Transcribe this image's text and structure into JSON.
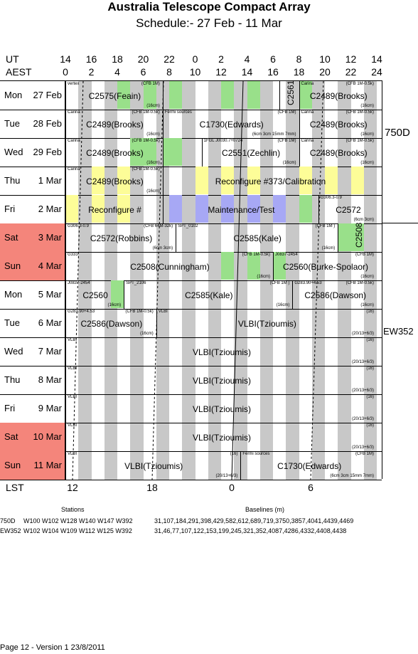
{
  "header": {
    "title": "Australia Telescope Compact Array",
    "subtitle": "Schedule:- 27 Feb - 11 Mar"
  },
  "axes": {
    "ut_label": "UT",
    "aest_label": "AEST",
    "lst_label": "LST",
    "ut_ticks": [
      "14",
      "16",
      "18",
      "20",
      "22",
      "0",
      "2",
      "4",
      "6",
      "8",
      "10",
      "12",
      "14"
    ],
    "aest_ticks": [
      "0",
      "2",
      "4",
      "6",
      "8",
      "10",
      "12",
      "14",
      "16",
      "18",
      "20",
      "22",
      "24"
    ],
    "lst_ticks": [
      "12",
      "18",
      "0",
      "6"
    ]
  },
  "days": [
    {
      "day": "Mon",
      "date": "27 Feb",
      "weekend": false
    },
    {
      "day": "Tue",
      "date": "28 Feb",
      "weekend": false
    },
    {
      "day": "Wed",
      "date": "29 Feb",
      "weekend": false
    },
    {
      "day": "Thu",
      "date": "1 Mar",
      "weekend": false
    },
    {
      "day": "Fri",
      "date": "2 Mar",
      "weekend": false
    },
    {
      "day": "Sat",
      "date": "3 Mar",
      "weekend": true
    },
    {
      "day": "Sun",
      "date": "4 Mar",
      "weekend": true
    },
    {
      "day": "Mon",
      "date": "5 Mar",
      "weekend": false
    },
    {
      "day": "Tue",
      "date": "6 Mar",
      "weekend": false
    },
    {
      "day": "Wed",
      "date": "7 Mar",
      "weekend": false
    },
    {
      "day": "Thu",
      "date": "8 Mar",
      "weekend": false
    },
    {
      "day": "Fri",
      "date": "9 Mar",
      "weekend": false
    },
    {
      "day": "Sat",
      "date": "10 Mar",
      "weekend": true
    },
    {
      "day": "Sun",
      "date": "11 Mar",
      "weekend": true
    }
  ],
  "colors": {
    "weekend": "#f4857b",
    "band_grey": "#c8c8c8",
    "band_green": "#99e08a",
    "band_yellow": "#fdfd98",
    "band_blue": "#a7a8f5"
  },
  "blocks": [
    {
      "row": 0,
      "start": 0.0,
      "end": 7.5,
      "title": "C2575(Feain)",
      "src": "vertex",
      "rc": "(CFB 1M)",
      "cm": "(16cm)"
    },
    {
      "row": 0,
      "start": 7.5,
      "end": 16.5,
      "title": "",
      "src": "",
      "rc": "",
      "cm": ""
    },
    {
      "row": 0,
      "start": 16.5,
      "end": 18.0,
      "title": "C2561",
      "src": "",
      "rc": "",
      "cm": "",
      "vertical": true
    },
    {
      "row": 0,
      "start": 18.0,
      "end": 24.0,
      "title": "C2489(Brooks)",
      "src": "Carina",
      "rc": "(CFB 1M-0.5k)",
      "cm": "(16cm)"
    },
    {
      "row": 1,
      "start": 0.0,
      "end": 7.5,
      "title": "C2489(Brooks)",
      "src": "Carina",
      "rc": "(CFB 1M-0.5k)",
      "cm": "(16cm)"
    },
    {
      "row": 1,
      "start": 7.5,
      "end": 18.0,
      "title": "C1730(Edwards)",
      "src": "Fermi sources",
      "rc": "(CFB 1M)",
      "cm": "(6cm 3cm 15mm 7mm)"
    },
    {
      "row": 1,
      "start": 18.0,
      "end": 24.0,
      "title": "C2489(Brooks)",
      "src": "Carina",
      "rc": "(CFB 1M-0.5k)",
      "cm": "(16cm)"
    },
    {
      "row": 2,
      "start": 0.0,
      "end": 7.5,
      "title": "C2489(Brooks)",
      "src": "Carina",
      "rc": "(CFB 1M-0.5k)",
      "cm": "(16cm)"
    },
    {
      "row": 2,
      "start": 7.5,
      "end": 10.5,
      "title": "",
      "src": "",
      "rc": "",
      "cm": ""
    },
    {
      "row": 2,
      "start": 10.5,
      "end": 18.0,
      "title": "C2551(Zechlin)",
      "src": "1FGL J0030.7+0724",
      "rc": "(CFB 1M)",
      "cm": "(16cm)"
    },
    {
      "row": 2,
      "start": 18.0,
      "end": 24.0,
      "title": "C2489(Brooks)",
      "src": "Carina",
      "rc": "(CFB 1M-0.5k)",
      "cm": "(16cm)"
    },
    {
      "row": 3,
      "start": 0.0,
      "end": 7.5,
      "title": "C2489(Brooks)",
      "src": "Carina",
      "rc": "(CFB 1M-0.5k)",
      "cm": "(16cm)"
    },
    {
      "row": 3,
      "start": 7.5,
      "end": 24.0,
      "title": "Reconfigure #373/Calibration",
      "src": "",
      "rc": "",
      "cm": ""
    },
    {
      "row": 4,
      "start": 0.0,
      "end": 7.5,
      "title": "Reconfigure #",
      "src": "",
      "rc": "",
      "cm": ""
    },
    {
      "row": 4,
      "start": 7.5,
      "end": 19.5,
      "title": "Maintenance/Test",
      "src": "",
      "rc": "",
      "cm": ""
    },
    {
      "row": 4,
      "start": 19.5,
      "end": 24.0,
      "title": "C2572",
      "src": "G306.3-0.9",
      "rc": "",
      "cm": "(6cm 3cm)"
    },
    {
      "row": 5,
      "start": 0.0,
      "end": 8.5,
      "title": "C2572(Robbins)",
      "src": "G306.3-0.9",
      "rc": "(CFB 64M-32k)",
      "cm": "(6cm 3cm)"
    },
    {
      "row": 5,
      "start": 8.5,
      "end": 21.0,
      "title": "C2585(Kale)",
      "src": "SPT_0102",
      "rc": "(CFB 1M )",
      "cm": "(16cm)"
    },
    {
      "row": 5,
      "start": 21.0,
      "end": 24.0,
      "title": "C2508",
      "src": "",
      "rc": "",
      "cm": "",
      "vertical": true
    },
    {
      "row": 6,
      "start": 0.0,
      "end": 16.0,
      "title": "C2508(Cunningham)",
      "src": "G333",
      "rc": "(CFB 1M-0.5k)",
      "cm": "(16cm)"
    },
    {
      "row": 6,
      "start": 16.0,
      "end": 24.0,
      "title": "C2560(Burke-Spolaor)",
      "src": "J0837-2454",
      "rc": "(CFB 1M)",
      "cm": "(16cm)"
    },
    {
      "row": 7,
      "start": 0.0,
      "end": 4.5,
      "title": "C2560",
      "src": "J0837-2454",
      "rc": "",
      "cm": "(16cm)"
    },
    {
      "row": 7,
      "start": 4.5,
      "end": 17.5,
      "title": "C2585(Kale)",
      "src": "SPT_2106",
      "rc": "(CFB 1M )",
      "cm": "(16cm)"
    },
    {
      "row": 7,
      "start": 17.5,
      "end": 24.0,
      "title": "C2586(Dawson)",
      "src": "G283.90+4.53",
      "rc": "(CFB 1M-0.5k)",
      "cm": "(16cm)"
    },
    {
      "row": 8,
      "start": 0.0,
      "end": 7.0,
      "title": "C2586(Dawson)",
      "src": "G283.90+4.53",
      "rc": "(CFB 1M-0.5k)",
      "cm": "(16cm)"
    },
    {
      "row": 8,
      "start": 7.0,
      "end": 24.0,
      "title": "VLBI(Tzioumis)",
      "src": "VLBI",
      "rc": "(16)",
      "cm": "(20/13+6/3)"
    },
    {
      "row": 9,
      "start": 0.0,
      "end": 24.0,
      "title": "VLBI(Tzioumis)",
      "src": "VLBI",
      "rc": "(16)",
      "cm": "(20/13+6/3)"
    },
    {
      "row": 10,
      "start": 0.0,
      "end": 24.0,
      "title": "VLBI(Tzioumis)",
      "src": "VLBI",
      "rc": "(16)",
      "cm": "(20/13+6/3)"
    },
    {
      "row": 11,
      "start": 0.0,
      "end": 24.0,
      "title": "VLBI(Tzioumis)",
      "src": "VLBI",
      "rc": "(16)",
      "cm": "(20/13+6/3)"
    },
    {
      "row": 12,
      "start": 0.0,
      "end": 24.0,
      "title": "VLBI(Tzioumis)",
      "src": "VLBI",
      "rc": "(16)",
      "cm": "(20/13+6/3)"
    },
    {
      "row": 13,
      "start": 0.0,
      "end": 13.5,
      "title": "VLBI(Tzioumis)",
      "src": "VLBI",
      "rc": "(16)",
      "cm": "(20/13+6/3)"
    },
    {
      "row": 13,
      "start": 13.5,
      "end": 24.0,
      "title": "C1730(Edwards)",
      "src": "Fermi sources",
      "rc": "(CFB 1M)",
      "cm": "(6cm 3cm 15mm 7mm)"
    }
  ],
  "configs": [
    {
      "name": "750D"
    },
    {
      "name": "EW352"
    }
  ],
  "stations": {
    "header": "Stations",
    "baselines_header": "Baselines (m)",
    "rows": [
      {
        "config": "750D",
        "stations": "W100 W102 W128 W140 W147 W392",
        "baselines": "31,107,184,291,398,429,582,612,689,719,3750,3857,4041,4439,4469"
      },
      {
        "config": "EW352",
        "stations": "W102 W104 W109 W112 W125 W392",
        "baselines": "31,46,77,107,122,153,199,245,321,352,4087,4286,4332,4408,4438"
      }
    ]
  },
  "footer": {
    "text": "Page 12 - Version 1  23/8/2011"
  }
}
